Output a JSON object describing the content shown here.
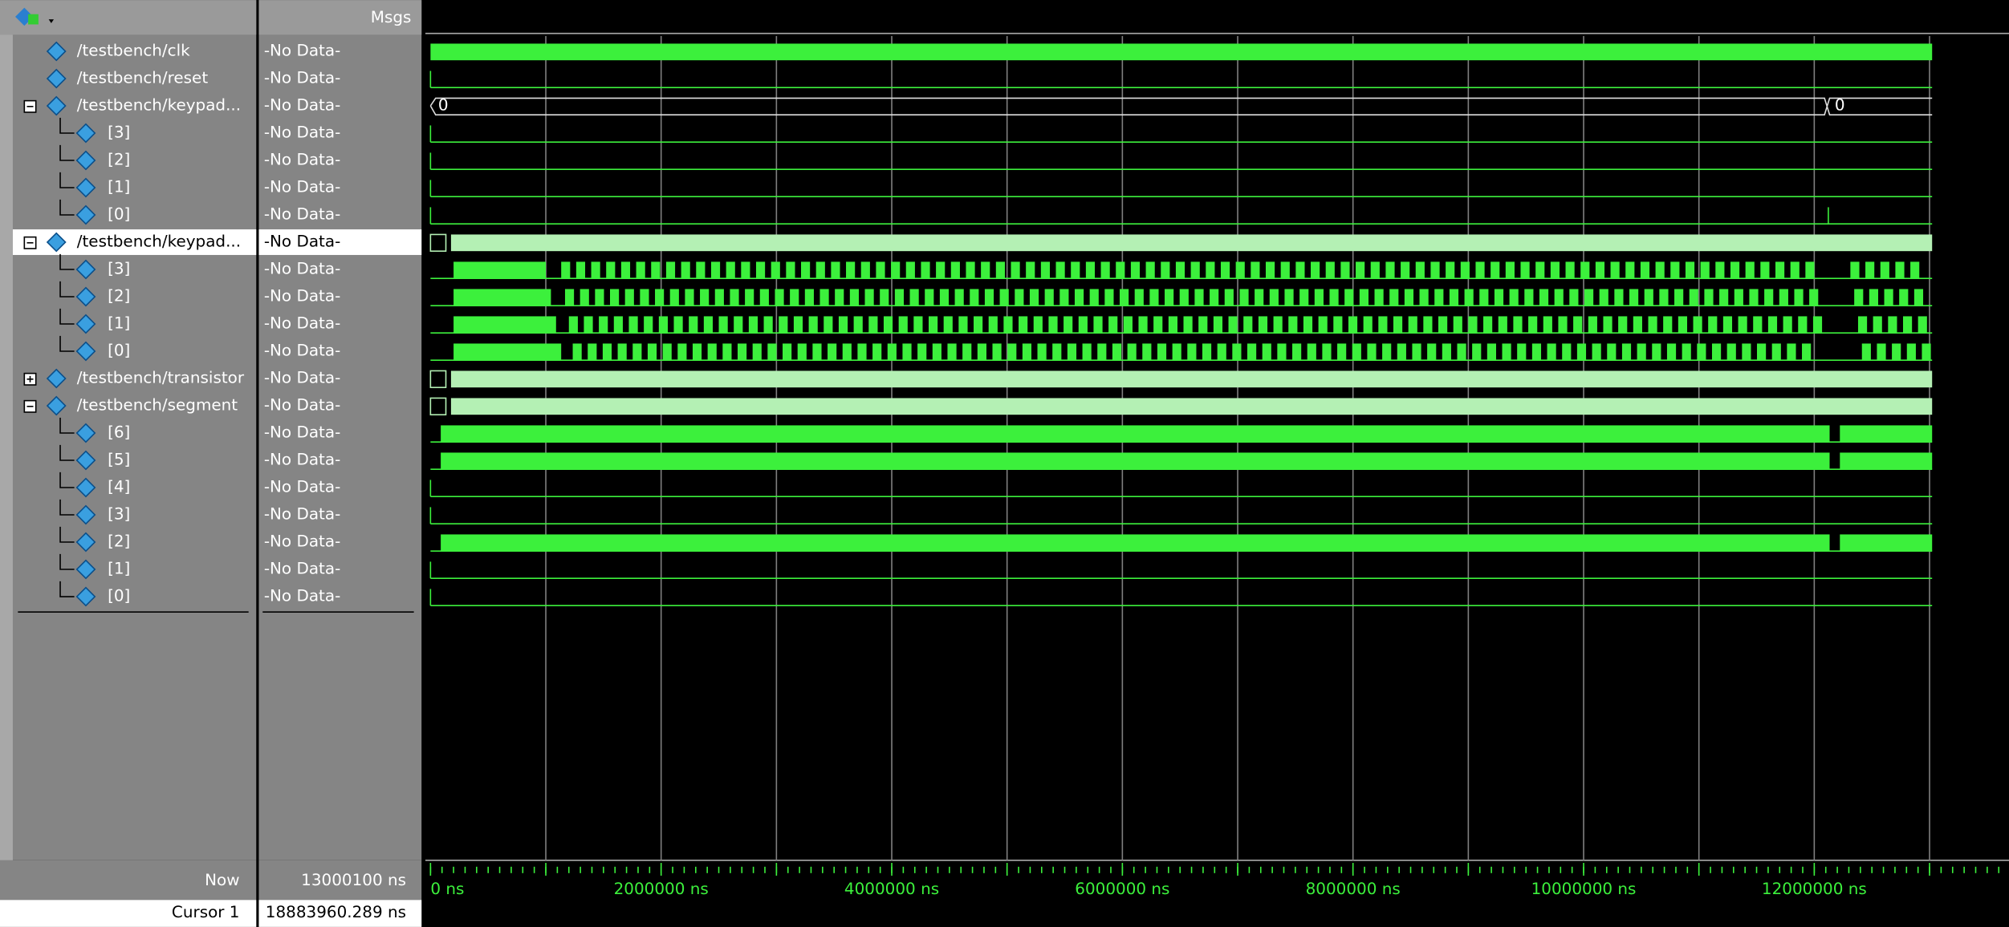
{
  "wave_window": {
    "header": {
      "msgs": "Msgs"
    },
    "signals": [
      {
        "name": "/testbench/clk",
        "value": "-No Data-"
      },
      {
        "name": "/testbench/reset",
        "value": "-No Data-"
      },
      {
        "name": "/testbench/keypad...",
        "value": "-No Data-",
        "wave_labels": [
          "0",
          "0"
        ]
      },
      {
        "name": "[3]",
        "value": "-No Data-"
      },
      {
        "name": "[2]",
        "value": "-No Data-"
      },
      {
        "name": "[1]",
        "value": "-No Data-"
      },
      {
        "name": "[0]",
        "value": "-No Data-"
      },
      {
        "name": "/testbench/keypad...",
        "value": "-No Data-"
      },
      {
        "name": "[3]",
        "value": "-No Data-"
      },
      {
        "name": "[2]",
        "value": "-No Data-"
      },
      {
        "name": "[1]",
        "value": "-No Data-"
      },
      {
        "name": "[0]",
        "value": "-No Data-"
      },
      {
        "name": "/testbench/transistor",
        "value": "-No Data-"
      },
      {
        "name": "/testbench/segment",
        "value": "-No Data-"
      },
      {
        "name": "[6]",
        "value": "-No Data-"
      },
      {
        "name": "[5]",
        "value": "-No Data-"
      },
      {
        "name": "[4]",
        "value": "-No Data-"
      },
      {
        "name": "[3]",
        "value": "-No Data-"
      },
      {
        "name": "[2]",
        "value": "-No Data-"
      },
      {
        "name": "[1]",
        "value": "-No Data-"
      },
      {
        "name": "[0]",
        "value": "-No Data-"
      }
    ],
    "time_axis": {
      "ticks": [
        "0 ns",
        "2000000 ns",
        "4000000 ns",
        "6000000 ns",
        "8000000 ns",
        "10000000 ns",
        "12000000 ns"
      ]
    },
    "status": {
      "now_label": "Now",
      "now_value": "13000100 ns",
      "cursor_label": "Cursor 1",
      "cursor_value": "18883960.289 ns"
    }
  }
}
